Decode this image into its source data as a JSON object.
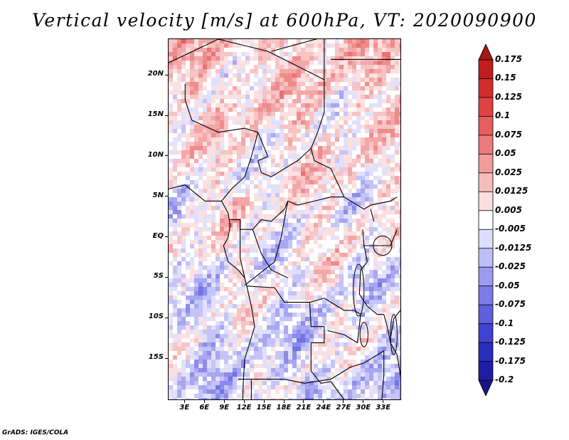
{
  "title": "Vertical velocity [m/s] at 600hPa, VT: 2020090900",
  "footer": "GrADS: IGES/COLA",
  "map": {
    "lon_ticks": [
      "3E",
      "6E",
      "9E",
      "12E",
      "15E",
      "18E",
      "21E",
      "24E",
      "27E",
      "30E",
      "33E"
    ],
    "lat_ticks": [
      "20N",
      "15N",
      "10N",
      "5N",
      "EQ",
      "5S",
      "10S",
      "15S"
    ],
    "lon_range": [
      0.5,
      35.5
    ],
    "lat_range": [
      -20,
      24.5
    ],
    "positive_color": "#e0393b",
    "negative_color": "#5a5ae6",
    "border_color": "#000000"
  },
  "colorbar": {
    "labels": [
      "0.175",
      "0.15",
      "0.125",
      "0.1",
      "0.075",
      "0.05",
      "0.025",
      "0.0125",
      "0.005",
      "-0.005",
      "-0.0125",
      "-0.025",
      "-0.05",
      "-0.075",
      "-0.1",
      "-0.125",
      "-0.175",
      "-0.2"
    ],
    "colors": [
      "#a51616",
      "#c01e1e",
      "#d22d2d",
      "#e04242",
      "#e65e5e",
      "#ec7b7b",
      "#f29b9b",
      "#f7bdbd",
      "#fcdede",
      "#ffffff",
      "#dedefc",
      "#bdbdf7",
      "#9b9bf0",
      "#7b7be8",
      "#5e5ede",
      "#4242d0",
      "#2d2dbd",
      "#1e1ea5",
      "#16168a"
    ]
  }
}
